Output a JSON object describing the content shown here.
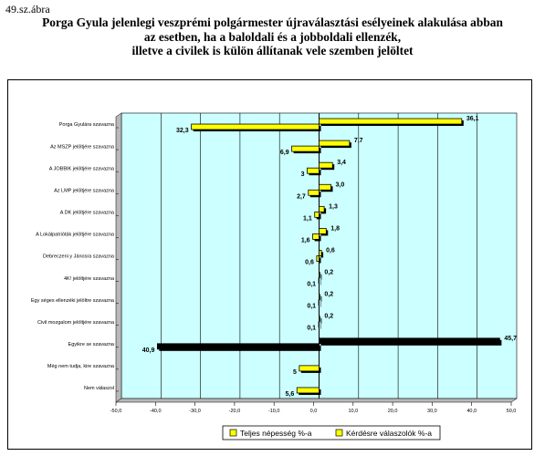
{
  "figure_number": "49.sz.ábra",
  "title_lines": [
    "Porga Gyula jelenlegi veszprémi polgármester újraválasztási esélyeinek alakulása abban",
    "az esetben, ha a baloldali és a jobboldali ellenzék,",
    "illetve a civilek is külön állítanak vele szemben jelöltet"
  ],
  "chart_data": {
    "type": "bar",
    "orientation": "horizontal",
    "categories": [
      "Porga Gyulára szavazna",
      "Az MSZP jelöltjére szavazna",
      "A JOBBIK jelöltjére szavazna",
      "Az LMP jelöltjére szavazna",
      "A DK jelöltjére szavazna",
      "A Lokálpatrióták jelöltjére szavazna",
      "Debreczeni y Jánosra szavazna",
      "4K! jelöltjére szavazna",
      "Egy séges ellenzéki jelöltre szavazna",
      "Civil mozgalom jelöltjére szavazna",
      "Egyikre se szavazna",
      "Még nem tudja, kire szavazna",
      "Nem válaszol"
    ],
    "series": [
      {
        "name": "Teljes népesség %-a",
        "values": [
          -32.3,
          -6.9,
          -3,
          -2.7,
          -1.1,
          -1.6,
          -0.6,
          -0.1,
          -0.1,
          -0.1,
          -40.9,
          -5,
          -5.6
        ],
        "labels": [
          "32,3",
          "6,9",
          "3",
          "2,7",
          "1,1",
          "1,6",
          "0,6",
          "0,1",
          "0,1",
          "0,1",
          "40,9",
          "5",
          "5,6"
        ],
        "color": "#ffff00"
      },
      {
        "name": "Kérdésre válaszolók %-a",
        "values": [
          36.1,
          7.7,
          3.4,
          3.0,
          1.3,
          1.8,
          0.6,
          0.2,
          0.2,
          0.2,
          45.7,
          0,
          0
        ],
        "labels": [
          "36,1",
          "7,7",
          "3,4",
          "3,0",
          "1,3",
          "1,8",
          "0,6",
          "0,2",
          "0,2",
          "0,2",
          "45,7",
          "",
          ""
        ],
        "color": "#ffff00"
      }
    ],
    "highlight_category": "Egyikre se szavazna",
    "highlight_color": "#000000",
    "xlim": [
      -50,
      50
    ],
    "x_ticks": [
      "-50,0",
      "-40,0",
      "-30,0",
      "-20,0",
      "-10,0",
      "0,0",
      "10,0",
      "20,0",
      "30,0",
      "40,0",
      "50,0"
    ],
    "plot_background": "#ccffff",
    "grid": true,
    "legend_position": "bottom"
  }
}
